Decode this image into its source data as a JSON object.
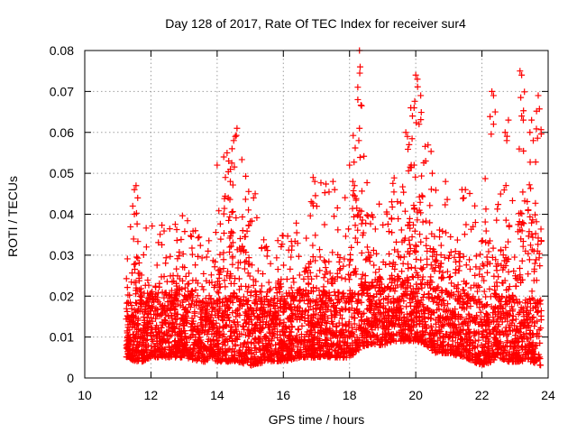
{
  "chart_data": {
    "type": "scatter",
    "title": "Day 128 of 2017, Rate Of TEC Index for receiver sur4",
    "xlabel": "GPS time / hours",
    "ylabel": "ROTI / TECUs",
    "xlim": [
      10,
      24
    ],
    "ylim": [
      0,
      0.08
    ],
    "x_ticks": [
      10,
      12,
      14,
      16,
      18,
      20,
      22,
      24
    ],
    "y_ticks": [
      0,
      0.01,
      0.02,
      0.03,
      0.04,
      0.05,
      0.06,
      0.07,
      0.08
    ],
    "x_tick_labels": [
      "10",
      "12",
      "14",
      "16",
      "18",
      "20",
      "22",
      "24"
    ],
    "y_tick_labels": [
      "0",
      "0.01",
      "0.02",
      "0.03",
      "0.04",
      "0.05",
      "0.06",
      "0.07",
      "0.08"
    ],
    "grid": true,
    "marker": "+",
    "color": "#ff0000",
    "series": [
      {
        "name": "ROTI",
        "x_range": [
          11.25,
          23.8
        ],
        "envelope": {
          "x": [
            11.25,
            11.5,
            11.75,
            12.0,
            12.5,
            13.0,
            13.5,
            14.0,
            14.3,
            14.6,
            15.0,
            15.5,
            16.0,
            16.5,
            17.0,
            17.5,
            18.0,
            18.3,
            18.5,
            19.0,
            19.5,
            19.8,
            20.0,
            20.3,
            20.6,
            21.0,
            21.5,
            22.0,
            22.3,
            22.5,
            22.8,
            23.0,
            23.2,
            23.5,
            23.8
          ],
          "upper": [
            0.03,
            0.046,
            0.04,
            0.037,
            0.039,
            0.04,
            0.036,
            0.042,
            0.054,
            0.061,
            0.044,
            0.034,
            0.038,
            0.04,
            0.049,
            0.048,
            0.048,
            0.08,
            0.05,
            0.043,
            0.052,
            0.06,
            0.074,
            0.066,
            0.052,
            0.048,
            0.046,
            0.043,
            0.07,
            0.046,
            0.063,
            0.05,
            0.075,
            0.064,
            0.069
          ],
          "lower": [
            0.005,
            0.004,
            0.004,
            0.005,
            0.005,
            0.005,
            0.004,
            0.004,
            0.004,
            0.004,
            0.003,
            0.004,
            0.004,
            0.005,
            0.005,
            0.005,
            0.005,
            0.007,
            0.008,
            0.008,
            0.009,
            0.009,
            0.009,
            0.008,
            0.006,
            0.006,
            0.005,
            0.003,
            0.004,
            0.005,
            0.004,
            0.004,
            0.004,
            0.004,
            0.003
          ]
        },
        "points": [
          [
            18.3,
            0.08
          ],
          [
            18.32,
            0.076
          ],
          [
            18.25,
            0.068
          ],
          [
            18.3,
            0.061
          ],
          [
            18.28,
            0.058
          ],
          [
            20.0,
            0.074
          ],
          [
            20.05,
            0.073
          ],
          [
            20.15,
            0.069
          ],
          [
            19.85,
            0.066
          ],
          [
            19.95,
            0.066
          ],
          [
            19.7,
            0.06
          ],
          [
            19.75,
            0.059
          ],
          [
            19.8,
            0.057
          ],
          [
            20.1,
            0.062
          ],
          [
            19.9,
            0.064
          ],
          [
            23.15,
            0.075
          ],
          [
            23.2,
            0.074
          ],
          [
            22.3,
            0.07
          ],
          [
            22.35,
            0.069
          ],
          [
            22.4,
            0.065
          ],
          [
            22.35,
            0.062
          ],
          [
            23.2,
            0.064
          ],
          [
            23.25,
            0.063
          ],
          [
            23.5,
            0.063
          ],
          [
            23.45,
            0.06
          ],
          [
            23.7,
            0.069
          ],
          [
            23.55,
            0.058
          ],
          [
            22.7,
            0.06
          ],
          [
            22.75,
            0.058
          ],
          [
            22.8,
            0.063
          ],
          [
            14.6,
            0.061
          ],
          [
            14.55,
            0.059
          ],
          [
            14.5,
            0.058
          ],
          [
            14.45,
            0.056
          ],
          [
            14.3,
            0.055
          ],
          [
            14.35,
            0.053
          ],
          [
            14.4,
            0.051
          ],
          [
            14.2,
            0.054
          ],
          [
            14.0,
            0.052
          ],
          [
            14.25,
            0.049
          ],
          [
            11.5,
            0.046
          ],
          [
            11.55,
            0.047
          ],
          [
            11.6,
            0.044
          ],
          [
            11.45,
            0.042
          ],
          [
            11.5,
            0.04
          ],
          [
            16.9,
            0.049
          ],
          [
            16.95,
            0.048
          ],
          [
            17.5,
            0.048
          ],
          [
            17.55,
            0.046
          ],
          [
            18.0,
            0.052
          ],
          [
            18.1,
            0.048
          ],
          [
            18.15,
            0.047
          ],
          [
            15.15,
            0.045
          ],
          [
            15.1,
            0.044
          ],
          [
            21.5,
            0.046
          ],
          [
            21.45,
            0.044
          ],
          [
            20.9,
            0.048
          ],
          [
            20.5,
            0.05
          ],
          [
            20.3,
            0.053
          ],
          [
            19.95,
            0.052
          ]
        ]
      }
    ]
  }
}
